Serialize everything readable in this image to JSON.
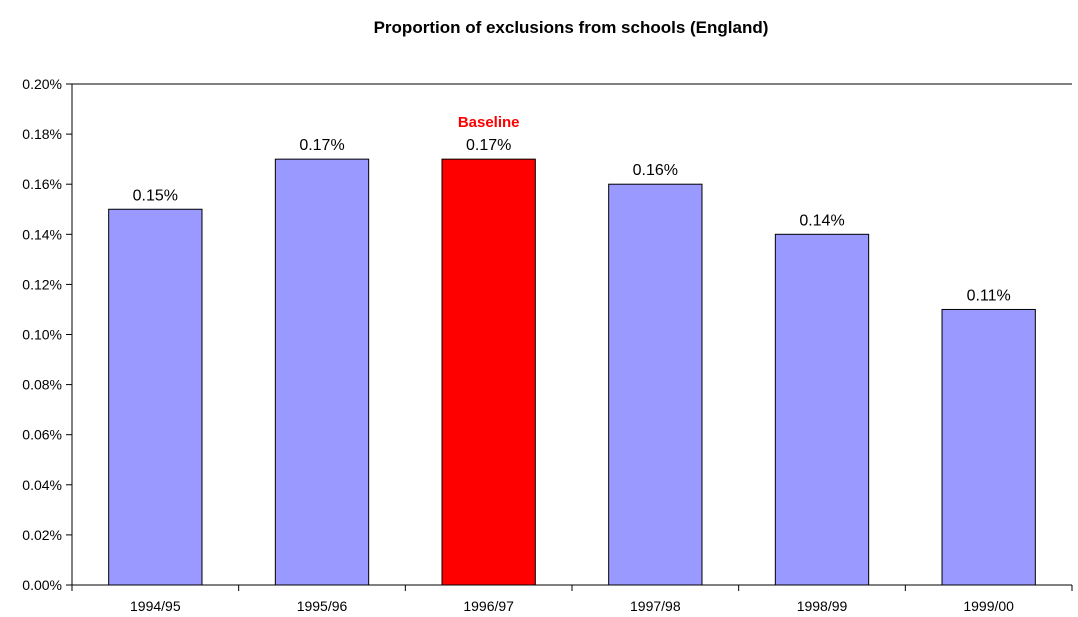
{
  "chart_data": {
    "type": "bar",
    "title": "Proportion of exclusions from schools (England)",
    "xlabel": "",
    "ylabel": "",
    "categories": [
      "1994/95",
      "1995/96",
      "1996/97",
      "1997/98",
      "1998/99",
      "1999/00"
    ],
    "values": [
      0.15,
      0.17,
      0.17,
      0.16,
      0.14,
      0.11
    ],
    "value_labels": [
      "0.15%",
      "0.17%",
      "0.17%",
      "0.16%",
      "0.14%",
      "0.11%"
    ],
    "y_ticks": [
      "0.00%",
      "0.02%",
      "0.04%",
      "0.06%",
      "0.08%",
      "0.10%",
      "0.12%",
      "0.14%",
      "0.16%",
      "0.18%",
      "0.20%"
    ],
    "ylim": [
      0,
      0.2
    ],
    "y_unit": "%",
    "grid": false,
    "legend": "none",
    "highlight": {
      "category": "1996/97",
      "label": "Baseline",
      "color": "#ff0000"
    },
    "bar_color": "#9999ff",
    "bar_edge_color": "#000000"
  }
}
